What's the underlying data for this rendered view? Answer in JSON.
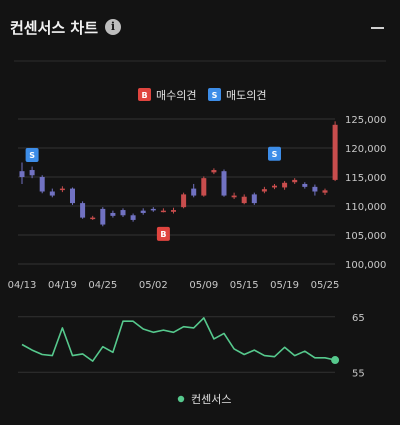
{
  "header": {
    "title": "컨센서스 차트",
    "info_icon": "info-icon",
    "collapse_icon": "minimize-icon"
  },
  "colors": {
    "up": "#c84d4d",
    "down": "#7172c2",
    "buy_badge": "#e0453f",
    "sell_badge": "#3d8de8",
    "consensus_line": "#56c98d",
    "grid": "#333333"
  },
  "chart_data": [
    {
      "type": "candlestick",
      "legend": [
        {
          "badge": "B",
          "label": "매수의견"
        },
        {
          "badge": "S",
          "label": "매도의견"
        }
      ],
      "ylim": [
        100000,
        125000
      ],
      "yticks": [
        100000,
        105000,
        110000,
        115000,
        120000,
        125000
      ],
      "ytick_labels": [
        "100,000",
        "105,000",
        "110,000",
        "115,000",
        "120,000",
        "125,000"
      ],
      "xtick_labels": [
        {
          "label": "04/13",
          "index": 0
        },
        {
          "label": "04/19",
          "index": 4
        },
        {
          "label": "04/25",
          "index": 8
        },
        {
          "label": "05/02",
          "index": 13
        },
        {
          "label": "05/09",
          "index": 18
        },
        {
          "label": "05/15",
          "index": 22
        },
        {
          "label": "05/19",
          "index": 26
        },
        {
          "label": "05/25",
          "index": 30
        }
      ],
      "candles": [
        {
          "o": 116000,
          "c": 115000,
          "h": 117500,
          "l": 113800
        },
        {
          "o": 116200,
          "c": 115300,
          "h": 116800,
          "l": 114800
        },
        {
          "o": 115000,
          "c": 112500,
          "h": 115300,
          "l": 112200
        },
        {
          "o": 112500,
          "c": 111800,
          "h": 113000,
          "l": 111500
        },
        {
          "o": 112800,
          "c": 113000,
          "h": 113400,
          "l": 112400
        },
        {
          "o": 113000,
          "c": 110500,
          "h": 113200,
          "l": 110200
        },
        {
          "o": 110500,
          "c": 108000,
          "h": 110800,
          "l": 107800
        },
        {
          "o": 107800,
          "c": 108000,
          "h": 108300,
          "l": 107600
        },
        {
          "o": 109500,
          "c": 106800,
          "h": 109800,
          "l": 106500
        },
        {
          "o": 108800,
          "c": 108300,
          "h": 109200,
          "l": 108000
        },
        {
          "o": 109300,
          "c": 108400,
          "h": 109600,
          "l": 108100
        },
        {
          "o": 108400,
          "c": 107600,
          "h": 108700,
          "l": 107300
        },
        {
          "o": 109200,
          "c": 108800,
          "h": 109600,
          "l": 108500
        },
        {
          "o": 109500,
          "c": 109300,
          "h": 109800,
          "l": 109000
        },
        {
          "o": 109100,
          "c": 109200,
          "h": 109600,
          "l": 108900
        },
        {
          "o": 109000,
          "c": 109300,
          "h": 109700,
          "l": 108700
        },
        {
          "o": 109800,
          "c": 112000,
          "h": 112300,
          "l": 109600
        },
        {
          "o": 113000,
          "c": 111800,
          "h": 113800,
          "l": 111500
        },
        {
          "o": 111800,
          "c": 114800,
          "h": 115100,
          "l": 111600
        },
        {
          "o": 115800,
          "c": 116200,
          "h": 116500,
          "l": 115500
        },
        {
          "o": 116000,
          "c": 111800,
          "h": 116300,
          "l": 111600
        },
        {
          "o": 111500,
          "c": 111800,
          "h": 112300,
          "l": 111200
        },
        {
          "o": 110500,
          "c": 111600,
          "h": 112000,
          "l": 110300
        },
        {
          "o": 112000,
          "c": 110500,
          "h": 112300,
          "l": 110200
        },
        {
          "o": 112500,
          "c": 112900,
          "h": 113300,
          "l": 112200
        },
        {
          "o": 113200,
          "c": 113500,
          "h": 113800,
          "l": 112900
        },
        {
          "o": 113200,
          "c": 114000,
          "h": 114300,
          "l": 112800
        },
        {
          "o": 114100,
          "c": 114500,
          "h": 114800,
          "l": 113800
        },
        {
          "o": 113800,
          "c": 113300,
          "h": 114100,
          "l": 113000
        },
        {
          "o": 113300,
          "c": 112500,
          "h": 113700,
          "l": 111800
        },
        {
          "o": 112300,
          "c": 112700,
          "h": 113000,
          "l": 111900
        },
        {
          "o": 114500,
          "c": 124000,
          "h": 124600,
          "l": 114300
        }
      ],
      "signals": [
        {
          "type": "S",
          "index": 1,
          "price": 118800
        },
        {
          "type": "B",
          "index": 14,
          "price": 105200
        },
        {
          "type": "S",
          "index": 25,
          "price": 119000
        }
      ]
    },
    {
      "type": "line",
      "ylim": [
        50,
        70
      ],
      "yticks": [
        55,
        65
      ],
      "series": [
        {
          "name": "컨센서스",
          "values": [
            60,
            59,
            58.2,
            58,
            63,
            58,
            58.3,
            57,
            59.6,
            58.6,
            64.2,
            64.2,
            62.8,
            62.2,
            62.6,
            62.2,
            63.2,
            63,
            64.8,
            61,
            62,
            59.2,
            58.2,
            59,
            58,
            57.8,
            59.5,
            58,
            58.8,
            57.6,
            57.6,
            57.2
          ]
        }
      ]
    }
  ]
}
